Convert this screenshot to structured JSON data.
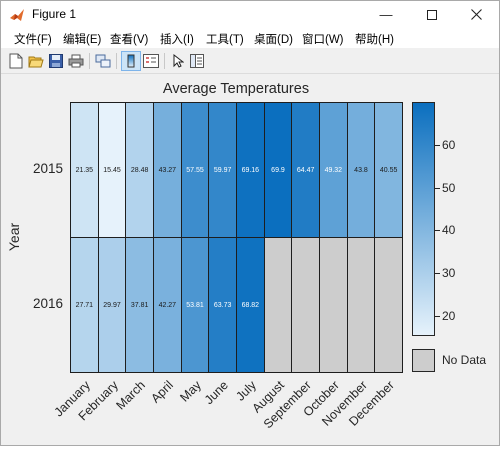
{
  "window": {
    "title": "Figure 1"
  },
  "menu": [
    "文件(F)",
    "编辑(E)",
    "查看(V)",
    "插入(I)",
    "工具(T)",
    "桌面(D)",
    "窗口(W)",
    "帮助(H)"
  ],
  "toolbar_icons": [
    "new-figure-icon",
    "open-file-icon",
    "save-icon",
    "print-icon",
    "link-plot-icon",
    "colorbar-icon",
    "legend-icon",
    "pointer-icon",
    "property-inspector-icon"
  ],
  "chart_data": {
    "type": "heatmap",
    "title": "Average Temperatures",
    "ylabel": "Year",
    "xlabel": "",
    "x_categories": [
      "January",
      "February",
      "March",
      "April",
      "May",
      "June",
      "July",
      "August",
      "September",
      "October",
      "November",
      "December"
    ],
    "y_categories": [
      "2015",
      "2016"
    ],
    "values": [
      [
        21.35,
        15.45,
        28.48,
        43.27,
        57.55,
        59.97,
        69.16,
        69.9,
        64.47,
        49.32,
        43.8,
        40.55
      ],
      [
        27.71,
        29.97,
        37.81,
        42.27,
        53.81,
        63.73,
        68.82,
        null,
        null,
        null,
        null,
        null
      ]
    ],
    "colorbar_ticks": [
      20,
      30,
      40,
      50,
      60
    ],
    "colorbar_range": [
      15.45,
      69.9
    ],
    "missing_label": "No Data",
    "missing_color": "#cdcdcd",
    "colormap_low": "#e6f2fb",
    "colormap_high": "#0b6fbf"
  }
}
